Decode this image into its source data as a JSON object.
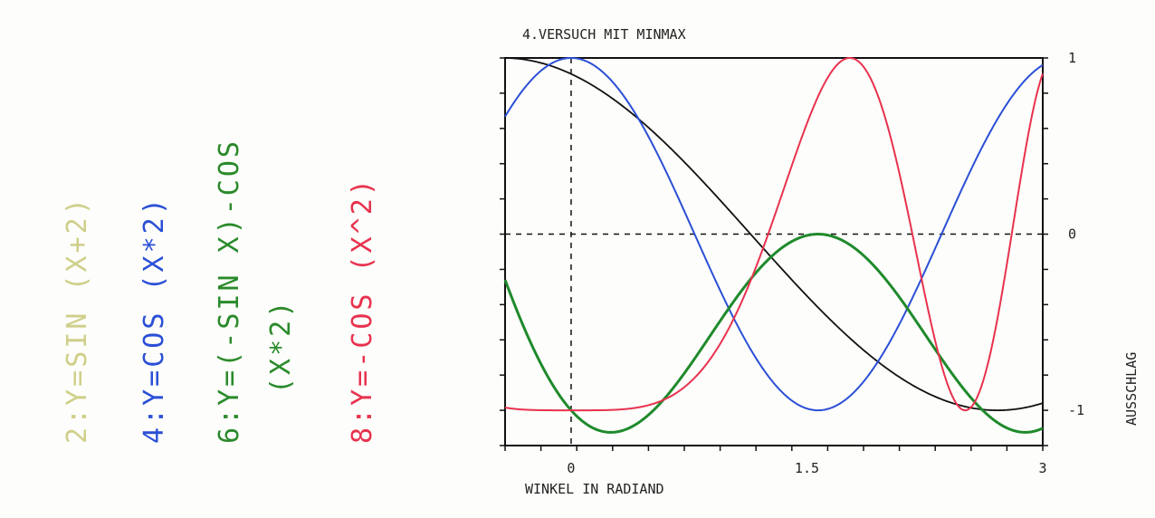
{
  "legend": [
    {
      "text": "2:Y=SIN (X+2)",
      "color": "#cfcf8a"
    },
    {
      "text": "4:Y=COS (X*2)",
      "color": "#2b4fd6"
    },
    {
      "text": "6:Y=(-SIN X)-COS",
      "color": "#2a8a2a"
    },
    {
      "text": "(X*2)",
      "color": "#2a8a2a"
    },
    {
      "text": "8:Y=-COS (X^2)",
      "color": "#e8324e"
    }
  ],
  "chart_data": {
    "type": "line",
    "title": "4.VERSUCH MIT MINMAX",
    "xlabel": "WINKEL IN RADIAND",
    "ylabel": "AUSSCHLAG",
    "xlim": [
      -0.42,
      3.0
    ],
    "ylim": [
      -1.2,
      1.0
    ],
    "x_ticks": [
      {
        "value": 0,
        "label": "0"
      },
      {
        "value": 1.5,
        "label": "1.5"
      },
      {
        "value": 3,
        "label": "3"
      }
    ],
    "y_ticks": [
      {
        "value": 1,
        "label": "1"
      },
      {
        "value": 0,
        "label": "0"
      },
      {
        "value": -1,
        "label": "-1"
      }
    ],
    "reference_lines": {
      "x": 0,
      "y": 0,
      "style": "dashed"
    },
    "series": [
      {
        "name": "2:Y=SIN (X+2)",
        "color": "#111111",
        "expr": "sin(x+2)"
      },
      {
        "name": "4:Y=COS (X*2)",
        "color": "#2b4fd6",
        "expr": "cos(2x)"
      },
      {
        "name": "6:Y=(-SIN X)-COS (X*2)",
        "color": "#1f8a2c",
        "expr": "-sin(x)-cos(2x)"
      },
      {
        "name": "8:Y=-COS (X^2)",
        "color": "#e8324e",
        "expr": "-cos(x^2)"
      }
    ]
  }
}
